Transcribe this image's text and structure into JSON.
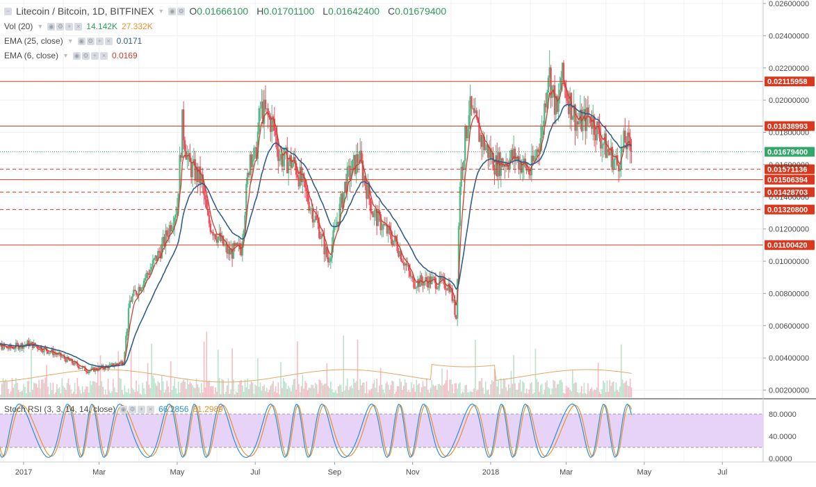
{
  "header": {
    "symbol_title": "Litecoin / Bitcoin, 1D, BITFINEX",
    "ohlc": {
      "o_label": "O",
      "o": "0.01666100",
      "h_label": "H",
      "h": "0.01701100",
      "l_label": "L",
      "l": "0.01642400",
      "c_label": "C",
      "c": "0.01679400"
    }
  },
  "indicators": {
    "volume": {
      "label": "Vol (20)",
      "value1": "14.142K",
      "value2": "27.332K"
    },
    "ema25": {
      "label": "EMA (25, close)",
      "value": "0.0171"
    },
    "ema6": {
      "label": "EMA (6, close)",
      "value": "0.0169"
    },
    "stoch": {
      "label": "Stoch RSI (3, 3, 14, 14, close)",
      "k_value": "66.2856",
      "d_value": "81.2989"
    }
  },
  "colors": {
    "up": "#53b987",
    "down": "#eb4d5c",
    "ema25": "#2e5d8a",
    "ema6": "#d23a2e",
    "hline": "#d9381e",
    "last_price": "#35a66a",
    "stoch_k": "#2a8fd8",
    "stoch_d": "#e8912d",
    "stoch_band": "#e6d3f7"
  },
  "icons": {
    "collapse": "square-minus-icon",
    "settings": "gear-icon",
    "eye": "eye-icon",
    "plus": "plus-icon",
    "close": "close-icon"
  },
  "chart_data": {
    "type": "candlestick",
    "title": "Litecoin / Bitcoin, 1D, BITFINEX",
    "x_ticks": [
      "2017",
      "Mar",
      "May",
      "Jul",
      "Sep",
      "Nov",
      "2018",
      "Mar",
      "May",
      "Jul"
    ],
    "y_ticks": [
      "0.02600000",
      "0.02400000",
      "0.02200000",
      "0.02000000",
      "0.01800000",
      "0.01600000",
      "0.01400000",
      "0.01200000",
      "0.01000000",
      "0.00800000",
      "0.00600000",
      "0.00400000",
      "0.00200000"
    ],
    "ylim": [
      0.0016,
      0.0261
    ],
    "grid": true,
    "price_levels": [
      {
        "label": "0.02115958",
        "value": 0.02115958,
        "style": "solid"
      },
      {
        "label": "0.01838993",
        "value": 0.01838993,
        "style": "solid"
      },
      {
        "label": "0.01571136",
        "value": 0.01571136,
        "style": "dashed"
      },
      {
        "label": "0.01506394",
        "value": 0.01506394,
        "style": "solid"
      },
      {
        "label": "0.01428703",
        "value": 0.01428703,
        "style": "dashed"
      },
      {
        "label": "0.01320800",
        "value": 0.013208,
        "style": "dashed"
      },
      {
        "label": "0.01100420",
        "value": 0.0110042,
        "style": "solid"
      }
    ],
    "last_price": {
      "label": "0.01679400",
      "value": 0.016794
    },
    "close_anchors": [
      [
        "2016-12-01",
        0.005
      ],
      [
        "2016-12-20",
        0.0046
      ],
      [
        "2017-01-05",
        0.0049
      ],
      [
        "2017-01-25",
        0.0043
      ],
      [
        "2017-02-20",
        0.0032
      ],
      [
        "2017-03-10",
        0.0035
      ],
      [
        "2017-03-20",
        0.0038
      ],
      [
        "2017-03-25",
        0.0075
      ],
      [
        "2017-04-10",
        0.0095
      ],
      [
        "2017-04-20",
        0.011
      ],
      [
        "2017-05-01",
        0.0135
      ],
      [
        "2017-05-05",
        0.0185
      ],
      [
        "2017-05-10",
        0.016
      ],
      [
        "2017-05-20",
        0.015
      ],
      [
        "2017-05-25",
        0.0125
      ],
      [
        "2017-06-10",
        0.0105
      ],
      [
        "2017-06-20",
        0.0108
      ],
      [
        "2017-06-27",
        0.0168
      ],
      [
        "2017-07-01",
        0.0163
      ],
      [
        "2017-07-05",
        0.0195
      ],
      [
        "2017-07-15",
        0.0185
      ],
      [
        "2017-07-20",
        0.0165
      ],
      [
        "2017-08-01",
        0.016
      ],
      [
        "2017-08-20",
        0.012
      ],
      [
        "2017-08-27",
        0.01
      ],
      [
        "2017-09-10",
        0.015
      ],
      [
        "2017-09-20",
        0.0165
      ],
      [
        "2017-10-01",
        0.013
      ],
      [
        "2017-10-20",
        0.011
      ],
      [
        "2017-11-01",
        0.0087
      ],
      [
        "2017-11-15",
        0.0088
      ],
      [
        "2017-11-30",
        0.0085
      ],
      [
        "2017-12-05",
        0.0065
      ],
      [
        "2017-12-08",
        0.015
      ],
      [
        "2017-12-15",
        0.0195
      ],
      [
        "2017-12-25",
        0.0175
      ],
      [
        "2018-01-05",
        0.016
      ],
      [
        "2018-01-20",
        0.0165
      ],
      [
        "2018-02-01",
        0.0155
      ],
      [
        "2018-02-10",
        0.018
      ],
      [
        "2018-02-15",
        0.022
      ],
      [
        "2018-02-22",
        0.019
      ],
      [
        "2018-02-25",
        0.0215
      ],
      [
        "2018-03-10",
        0.0185
      ],
      [
        "2018-03-20",
        0.019
      ],
      [
        "2018-04-01",
        0.017
      ],
      [
        "2018-04-10",
        0.016
      ],
      [
        "2018-04-16",
        0.0175
      ],
      [
        "2018-04-21",
        0.016794
      ]
    ],
    "ema_series": [
      "EMA (25, close)",
      "EMA (6, close)"
    ],
    "stoch_rsi": {
      "ticks": [
        "80.0000",
        "40.0000",
        "0.0000"
      ],
      "ylim": [
        0,
        100
      ],
      "upper": 80,
      "lower": 20
    }
  }
}
